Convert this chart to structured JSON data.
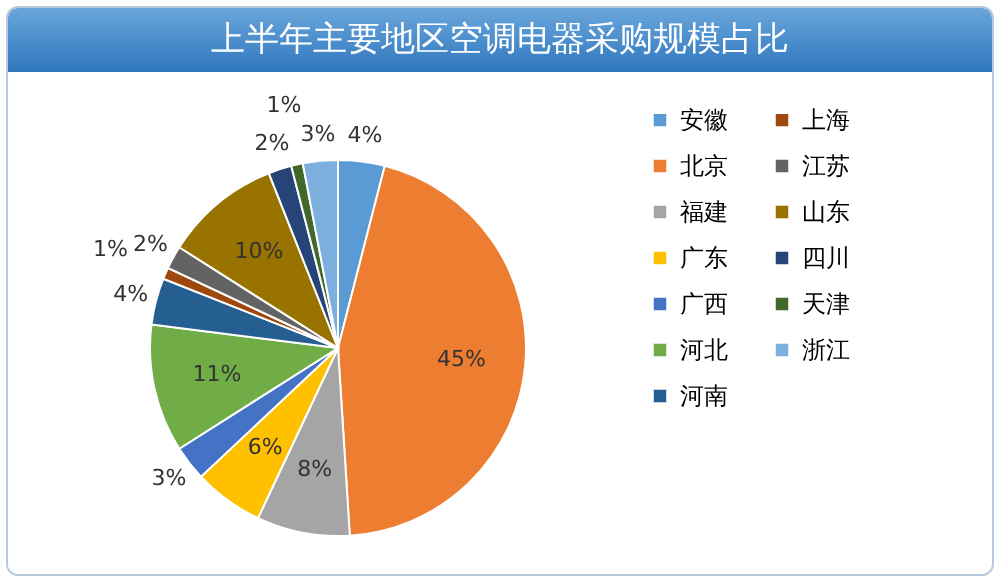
{
  "chart_data": {
    "type": "pie",
    "title": "上半年主要地区空调电器采购规模占比",
    "categories": [
      "安徽",
      "北京",
      "福建",
      "广东",
      "广西",
      "河北",
      "河南",
      "上海",
      "江苏",
      "山东",
      "四川",
      "天津",
      "浙江"
    ],
    "values": [
      4,
      45,
      8,
      6,
      3,
      11,
      4,
      1,
      2,
      10,
      2,
      1,
      3
    ],
    "value_labels": [
      "4%",
      "45%",
      "8%",
      "6%",
      "3%",
      "11%",
      "4%",
      "1%",
      "2%",
      "10%",
      "2%",
      "1%",
      "3%"
    ],
    "colors": [
      "#5b9bd5",
      "#ed7d31",
      "#a5a5a5",
      "#ffc000",
      "#4472c4",
      "#70ad47",
      "#255e91",
      "#9e480e",
      "#636363",
      "#997300",
      "#264478",
      "#43682b",
      "#7cafdd"
    ],
    "legend": "right"
  }
}
